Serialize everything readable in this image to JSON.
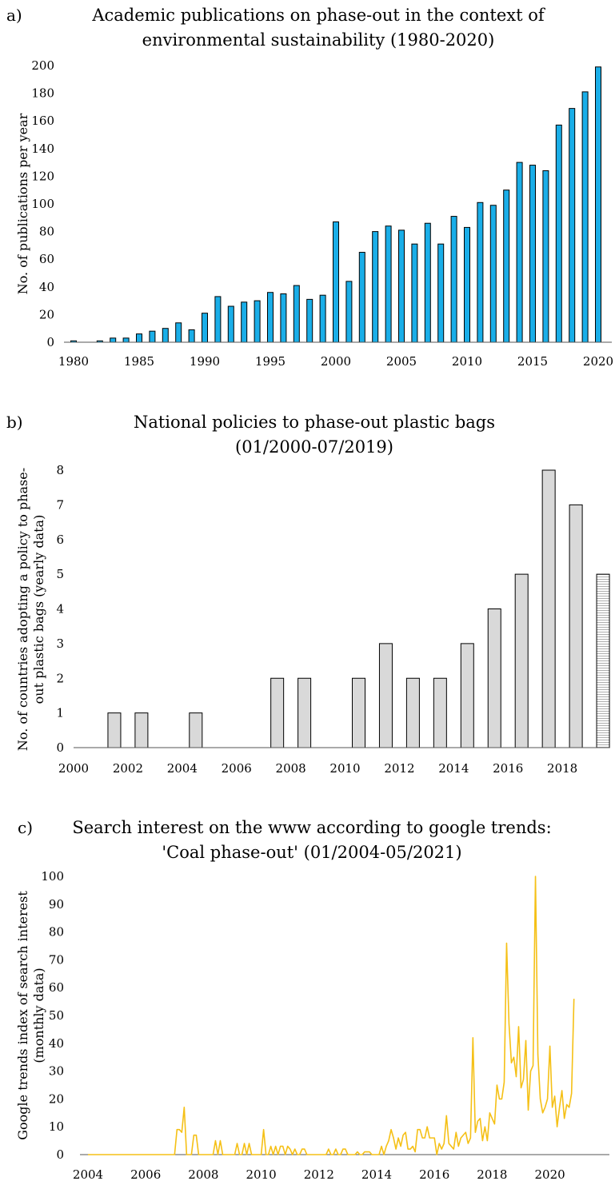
{
  "colors": {
    "bar_a": "#1aaee8",
    "bar_b": "#d9d9d9",
    "line_c": "#f5c016",
    "axis": "#555555",
    "bar_outline": "#000000"
  },
  "charts": [
    {
      "letter": "a)",
      "title_lines": [
        "Academic publications on phase-out in the context of",
        "environmental sustainability (1980-2020)"
      ],
      "ylabel_lines": [
        "No. of publications per year"
      ],
      "yticks": [
        "0",
        "20",
        "40",
        "60",
        "80",
        "100",
        "120",
        "140",
        "160",
        "180",
        "200"
      ],
      "xticks": [
        "1980",
        "1985",
        "1990",
        "1995",
        "2000",
        "2005",
        "2010",
        "2015",
        "2020"
      ]
    },
    {
      "letter": "b)",
      "title_lines": [
        "National policies to phase-out plastic bags",
        "(01/2000-07/2019)"
      ],
      "ylabel_lines": [
        "No. of countries adopting a policy to phase-",
        "out plastic bags (yearly data)"
      ],
      "yticks": [
        "0",
        "1",
        "2",
        "3",
        "4",
        "5",
        "6",
        "7",
        "8"
      ],
      "xticks": [
        "2000",
        "2002",
        "2004",
        "2006",
        "2008",
        "2010",
        "2012",
        "2014",
        "2016",
        "2018"
      ]
    },
    {
      "letter": "c)",
      "title_lines": [
        "Search interest on the www according to google trends:",
        "'Coal phase-out' (01/2004-05/2021)"
      ],
      "ylabel_lines": [
        "Google trends index of search interest",
        "(monthly data)"
      ],
      "yticks": [
        "0",
        "10",
        "20",
        "30",
        "40",
        "50",
        "60",
        "70",
        "80",
        "90",
        "100"
      ],
      "xticks": [
        "2004",
        "2006",
        "2008",
        "2010",
        "2012",
        "2014",
        "2016",
        "2018",
        "2020"
      ]
    }
  ],
  "chart_data": [
    {
      "type": "bar",
      "title": "Academic publications on phase-out in the context of environmental sustainability (1980-2020)",
      "xlabel": "",
      "ylabel": "No. of publications per year",
      "ylim": [
        0,
        200
      ],
      "grid": false,
      "categories": [
        1980,
        1981,
        1982,
        1983,
        1984,
        1985,
        1986,
        1987,
        1988,
        1989,
        1990,
        1991,
        1992,
        1993,
        1994,
        1995,
        1996,
        1997,
        1998,
        1999,
        2000,
        2001,
        2002,
        2003,
        2004,
        2005,
        2006,
        2007,
        2008,
        2009,
        2010,
        2011,
        2012,
        2013,
        2014,
        2015,
        2016,
        2017,
        2018,
        2019,
        2020
      ],
      "values": [
        1,
        0,
        1,
        3,
        3,
        6,
        8,
        10,
        14,
        9,
        21,
        33,
        26,
        29,
        30,
        36,
        35,
        41,
        31,
        34,
        87,
        44,
        65,
        80,
        84,
        81,
        71,
        86,
        71,
        91,
        83,
        101,
        99,
        110,
        130,
        128,
        124,
        157,
        169,
        181,
        199
      ]
    },
    {
      "type": "bar",
      "title": "National policies to phase-out plastic bags (01/2000-07/2019)",
      "xlabel": "",
      "ylabel": "No. of countries adopting a policy to phase-out plastic bags (yearly data)",
      "ylim": [
        0,
        8
      ],
      "grid": false,
      "categories": [
        2000,
        2001,
        2002,
        2003,
        2004,
        2005,
        2006,
        2007,
        2008,
        2009,
        2010,
        2011,
        2012,
        2013,
        2014,
        2015,
        2016,
        2017,
        2018,
        2019
      ],
      "values": [
        0,
        1,
        1,
        0,
        1,
        0,
        0,
        2,
        2,
        0,
        2,
        3,
        2,
        2,
        3,
        4,
        5,
        8,
        7,
        5
      ],
      "partial_last_bar": true
    },
    {
      "type": "line",
      "title": "Search interest on the www according to google trends: 'Coal phase-out' (01/2004-05/2021)",
      "xlabel": "",
      "ylabel": "Google trends index of search interest (monthly data)",
      "ylim": [
        0,
        100
      ],
      "grid": false,
      "x_start": "2004-01",
      "x_end": "2021-05",
      "series": [
        {
          "values": [
            0,
            0,
            0,
            0,
            0,
            0,
            0,
            0,
            0,
            0,
            0,
            0,
            0,
            0,
            0,
            0,
            0,
            0,
            0,
            0,
            0,
            0,
            0,
            0,
            0,
            0,
            0,
            0,
            0,
            0,
            0,
            0,
            0,
            0,
            0,
            0,
            0,
            9,
            9,
            8,
            17,
            0,
            0,
            0,
            7,
            7,
            0,
            0,
            0,
            0,
            0,
            0,
            0,
            5,
            0,
            5,
            0,
            0,
            0,
            0,
            0,
            0,
            4,
            0,
            0,
            4,
            0,
            4,
            0,
            0,
            0,
            0,
            0,
            9,
            0,
            0,
            3,
            0,
            3,
            0,
            3,
            3,
            0,
            3,
            2,
            0,
            2,
            0,
            0,
            2,
            2,
            0,
            0,
            0,
            0,
            0,
            0,
            0,
            0,
            0,
            2,
            0,
            0,
            2,
            0,
            0,
            2,
            2,
            0,
            0,
            0,
            0,
            1,
            0,
            0,
            1,
            1,
            1,
            0,
            0,
            0,
            0,
            3,
            0,
            3,
            5,
            9,
            6,
            2,
            6,
            3,
            7,
            8,
            2,
            2,
            3,
            1,
            9,
            9,
            6,
            6,
            10,
            6,
            6,
            6,
            0,
            4,
            2,
            4,
            14,
            4,
            3,
            2,
            8,
            3,
            6,
            7,
            8,
            4,
            6,
            42,
            8,
            12,
            13,
            5,
            10,
            5,
            15,
            13,
            11,
            25,
            20,
            20,
            26,
            76,
            47,
            33,
            35,
            28,
            46,
            24,
            27,
            41,
            16,
            30,
            32,
            100,
            36,
            20,
            15,
            17,
            20,
            39,
            17,
            21,
            10,
            17,
            23,
            13,
            18,
            17,
            22,
            56
          ]
        }
      ]
    }
  ]
}
